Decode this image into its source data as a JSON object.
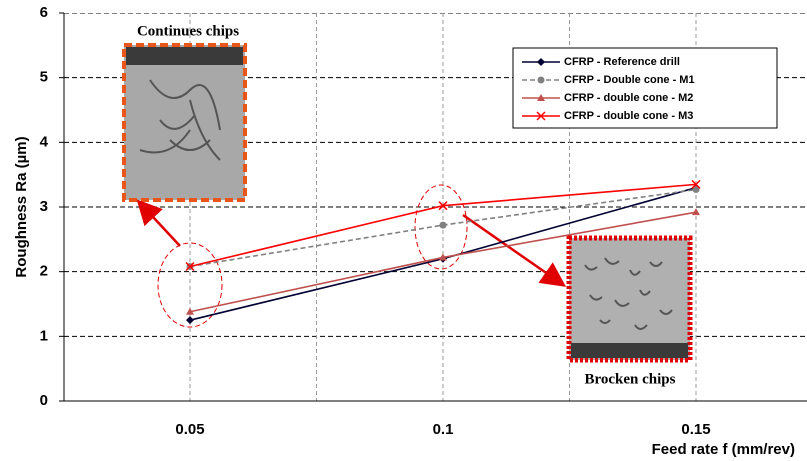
{
  "chart_data": {
    "type": "line",
    "x_label": "Feed rate f (mm/rev)",
    "y_label": "Roughness Ra (µm)",
    "categories": [
      "0.05",
      "0.1",
      "0.15"
    ],
    "ylim": [
      0,
      6
    ],
    "yticks": [
      0,
      1,
      2,
      3,
      4,
      5,
      6
    ],
    "grid": true,
    "legend": "upper right",
    "series": [
      {
        "name": "CFRP - Reference drill",
        "color": "#000033",
        "marker": "diamond",
        "dashed": false,
        "values": [
          1.25,
          2.2,
          3.3
        ]
      },
      {
        "name": "CFRP - Double cone - M1",
        "color": "#808080",
        "marker": "circle",
        "dashed": true,
        "values": [
          2.08,
          2.72,
          3.27
        ]
      },
      {
        "name": "CFRP - double cone - M2",
        "color": "#c0504d",
        "marker": "triangle",
        "dashed": false,
        "values": [
          1.38,
          2.22,
          2.92
        ]
      },
      {
        "name": "CFRP - double cone - M3",
        "color": "#ff0000",
        "marker": "x",
        "dashed": false,
        "values": [
          2.08,
          3.02,
          3.35
        ]
      }
    ],
    "annotations": [
      "Continues chips",
      "Brocken chips"
    ]
  }
}
